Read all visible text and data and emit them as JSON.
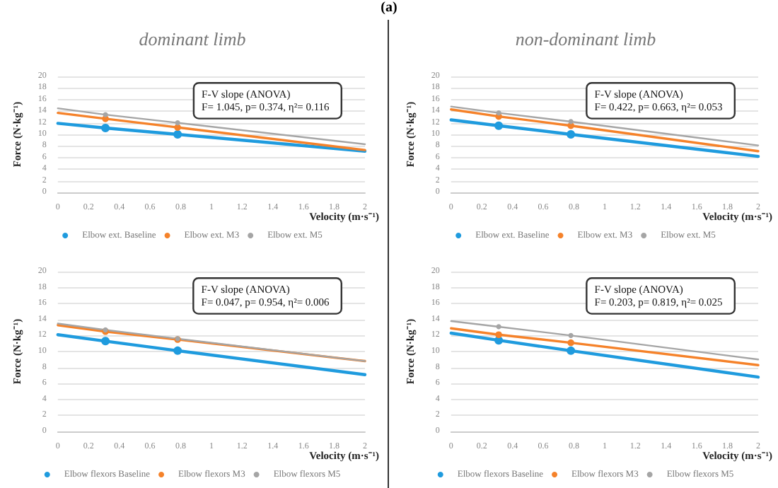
{
  "chart_data": [
    {
      "type": "line",
      "title": "dominant limb",
      "xlabel": "Velocity (m·s⁻¹)",
      "ylabel": "Force (N·kg⁻¹)",
      "annotations": [
        "F-V slope (ANOVA)\nF= 1.045, p= 0.374, η²= 0.116",
        "(a)"
      ],
      "xlim": [
        0,
        2
      ],
      "xticks": [
        0,
        0.2,
        0.4,
        0.6,
        0.8,
        1,
        1.2,
        1.4,
        1.6,
        1.8,
        2
      ],
      "ylim": [
        0,
        20
      ],
      "yticks": [
        0,
        2,
        4,
        6,
        8,
        10,
        12,
        14,
        16,
        18,
        20
      ],
      "grid": "y",
      "legend": "bottom",
      "marker": "circle",
      "series": [
        {
          "name": "Elbow ext. Baseline",
          "color": "#1f9bde",
          "x": [
            0,
            0.31,
            0.78,
            2
          ],
          "values": [
            11.9,
            11.1,
            10.0,
            7.1
          ]
        },
        {
          "name": "Elbow ext. M3",
          "color": "#f5822a",
          "x": [
            0,
            0.31,
            0.78,
            2
          ],
          "values": [
            13.7,
            12.7,
            11.2,
            7.3
          ]
        },
        {
          "name": "Elbow ext. M5",
          "color": "#a5a5a5",
          "x": [
            0,
            0.31,
            0.78,
            2
          ],
          "values": [
            14.5,
            13.4,
            12.0,
            8.3
          ]
        }
      ]
    },
    {
      "type": "line",
      "title": "non-dominant limb",
      "xlabel": "Velocity (m·s⁻¹)",
      "ylabel": "Force (N·kg⁻¹)",
      "annotations": [
        "F-V slope (ANOVA)\nF= 0.422, p= 0.663, η²= 0.053"
      ],
      "xlim": [
        0,
        2
      ],
      "xticks": [
        0,
        0.2,
        0.4,
        0.6,
        0.8,
        1,
        1.2,
        1.4,
        1.6,
        1.8,
        2
      ],
      "ylim": [
        0,
        20
      ],
      "yticks": [
        0,
        2,
        4,
        6,
        8,
        10,
        12,
        14,
        16,
        18,
        20
      ],
      "grid": "y",
      "legend": "bottom",
      "marker": "circle",
      "series": [
        {
          "name": "Elbow ext. Baseline",
          "color": "#1f9bde",
          "x": [
            0,
            0.31,
            0.78,
            2
          ],
          "values": [
            12.5,
            11.5,
            10.0,
            6.2
          ]
        },
        {
          "name": "Elbow ext. M3",
          "color": "#f5822a",
          "x": [
            0,
            0.31,
            0.78,
            2
          ],
          "values": [
            14.3,
            13.1,
            11.5,
            7.1
          ]
        },
        {
          "name": "Elbow ext. M5",
          "color": "#a5a5a5",
          "x": [
            0,
            0.31,
            0.78,
            2
          ],
          "values": [
            14.8,
            13.7,
            12.2,
            8.1
          ]
        }
      ]
    },
    {
      "type": "line",
      "xlabel": "Velocity (m·s⁻¹)",
      "ylabel": "Force (N·kg⁻¹)",
      "annotations": [
        "F-V slope (ANOVA)\nF= 0.047, p= 0.954, η²= 0.006"
      ],
      "xlim": [
        0,
        2
      ],
      "xticks": [
        0,
        0.2,
        0.4,
        0.6,
        0.8,
        1,
        1.2,
        1.4,
        1.6,
        1.8,
        2
      ],
      "ylim": [
        0,
        20
      ],
      "yticks": [
        0,
        2,
        4,
        6,
        8,
        10,
        12,
        14,
        16,
        18,
        20
      ],
      "grid": "y",
      "legend": "bottom",
      "marker": "circle",
      "series": [
        {
          "name": "Elbow flexors Baseline",
          "color": "#1f9bde",
          "x": [
            0,
            0.31,
            0.78,
            2
          ],
          "values": [
            12.1,
            11.3,
            10.1,
            7.1
          ]
        },
        {
          "name": "Elbow flexors M3",
          "color": "#f5822a",
          "x": [
            0,
            0.31,
            0.78,
            2
          ],
          "values": [
            13.3,
            12.5,
            11.5,
            8.8
          ]
        },
        {
          "name": "Elbow flexors M5",
          "color": "#a5a5a5",
          "x": [
            0,
            0.31,
            0.78,
            2
          ],
          "values": [
            13.5,
            12.7,
            11.6,
            8.8
          ]
        }
      ]
    },
    {
      "type": "line",
      "xlabel": "Velocity (m·s⁻¹)",
      "ylabel": "Force (N·kg⁻¹)",
      "annotations": [
        "F-V slope (ANOVA)\nF= 0.203, p= 0.819, η²= 0.025"
      ],
      "xlim": [
        0,
        2
      ],
      "xticks": [
        0,
        0.2,
        0.4,
        0.6,
        0.8,
        1,
        1.2,
        1.4,
        1.6,
        1.8,
        2
      ],
      "ylim": [
        0,
        20
      ],
      "yticks": [
        0,
        2,
        4,
        6,
        8,
        10,
        12,
        14,
        16,
        18,
        20
      ],
      "grid": "y",
      "legend": "bottom",
      "marker": "circle",
      "series": [
        {
          "name": "Elbow flexors Baseline",
          "color": "#1f9bde",
          "x": [
            0,
            0.31,
            0.78,
            2
          ],
          "values": [
            12.3,
            11.4,
            10.1,
            6.8
          ]
        },
        {
          "name": "Elbow flexors M3",
          "color": "#f5822a",
          "x": [
            0,
            0.31,
            0.78,
            2
          ],
          "values": [
            12.9,
            12.1,
            11.1,
            8.3
          ]
        },
        {
          "name": "Elbow flexors M5",
          "color": "#a5a5a5",
          "x": [
            0,
            0.31,
            0.78,
            2
          ],
          "values": [
            13.8,
            13.1,
            12.0,
            9.0
          ]
        }
      ]
    }
  ]
}
